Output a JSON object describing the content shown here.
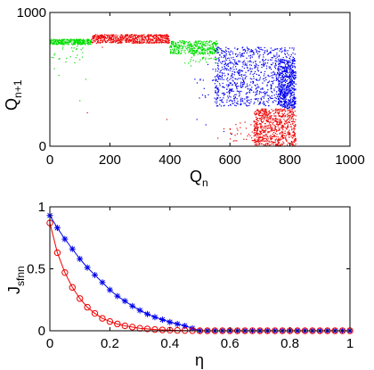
{
  "chart_data": [
    {
      "type": "scatter",
      "xlim": [
        0,
        1000
      ],
      "ylim": [
        0,
        1000
      ],
      "x_ticks": [
        "0",
        "200",
        "400",
        "600",
        "800",
        "1000"
      ],
      "y_ticks": [
        "0",
        "1000"
      ],
      "xlabel": {
        "main": "Q",
        "sub": "n"
      },
      "ylabel": {
        "main": "Q",
        "sub": "n+1"
      },
      "grid": false,
      "series": [
        {
          "color": "#00dd00",
          "clusters": [
            {
              "x": [
                0,
                140
              ],
              "y": [
                760,
                800
              ],
              "n": 320
            },
            {
              "x": [
                400,
                560
              ],
              "y": [
                690,
                790
              ],
              "n": 380
            },
            {
              "x": [
                5,
                110
              ],
              "y": [
                620,
                760
              ],
              "n": 25
            },
            {
              "x": [
                450,
                560
              ],
              "y": [
                620,
                720
              ],
              "n": 40
            }
          ],
          "points": [
            [
              15,
              580
            ],
            [
              30,
              530
            ],
            [
              100,
              340
            ],
            [
              120,
              500
            ],
            [
              470,
              600
            ]
          ]
        },
        {
          "color": "#ee0000",
          "clusters": [
            {
              "x": [
                140,
                400
              ],
              "y": [
                770,
                835
              ],
              "n": 600
            },
            {
              "x": [
                680,
                820
              ],
              "y": [
                0,
                280
              ],
              "n": 700
            },
            {
              "x": [
                600,
                700
              ],
              "y": [
                20,
                180
              ],
              "n": 45
            }
          ],
          "points": [
            [
              125,
              250
            ],
            [
              175,
              740
            ],
            [
              390,
              200
            ],
            [
              560,
              60
            ],
            [
              580,
              130
            ]
          ]
        },
        {
          "color": "#0000ee",
          "clusters": [
            {
              "x": [
                550,
                820
              ],
              "y": [
                300,
                740
              ],
              "n": 950
            },
            {
              "x": [
                760,
                820
              ],
              "y": [
                280,
                650
              ],
              "n": 450
            },
            {
              "x": [
                480,
                620
              ],
              "y": [
                350,
                620
              ],
              "n": 40
            }
          ],
          "points": [
            [
              490,
              200
            ],
            [
              520,
              160
            ],
            [
              560,
              720
            ],
            [
              580,
              110
            ],
            [
              605,
              90
            ]
          ]
        }
      ]
    },
    {
      "type": "line",
      "xlim": [
        0,
        1
      ],
      "ylim": [
        0,
        1
      ],
      "x_ticks": [
        "0",
        "0.2",
        "0.4",
        "0.6",
        "0.8",
        "1"
      ],
      "y_ticks": [
        "0",
        "0.5",
        "1"
      ],
      "xlabel": "η",
      "ylabel": {
        "main": "J",
        "sub": "sfnn"
      },
      "grid": false,
      "x": [
        0.0,
        0.025,
        0.05,
        0.075,
        0.1,
        0.125,
        0.15,
        0.175,
        0.2,
        0.225,
        0.25,
        0.275,
        0.3,
        0.325,
        0.35,
        0.375,
        0.4,
        0.425,
        0.45,
        0.475,
        0.5,
        0.525,
        0.55,
        0.575,
        0.6,
        0.625,
        0.65,
        0.675,
        0.7,
        0.725,
        0.75,
        0.775,
        0.8,
        0.825,
        0.85,
        0.875,
        0.9,
        0.925,
        0.95,
        0.975,
        1.0
      ],
      "series": [
        {
          "color": "#0000ee",
          "marker": "star",
          "values": [
            0.93,
            0.83,
            0.74,
            0.66,
            0.58,
            0.51,
            0.45,
            0.39,
            0.33,
            0.28,
            0.24,
            0.2,
            0.165,
            0.135,
            0.11,
            0.09,
            0.07,
            0.055,
            0.04,
            0.02,
            0.0,
            0.0,
            0.0,
            0.0,
            0.0,
            0.0,
            0.0,
            0.0,
            0.0,
            0.0,
            0.0,
            0.0,
            0.0,
            0.0,
            0.0,
            0.0,
            0.0,
            0.0,
            0.0,
            0.0,
            0.0
          ]
        },
        {
          "color": "#ee0000",
          "marker": "circle",
          "values": [
            0.87,
            0.63,
            0.47,
            0.35,
            0.26,
            0.19,
            0.14,
            0.1,
            0.075,
            0.055,
            0.04,
            0.03,
            0.02,
            0.015,
            0.01,
            0.007,
            0.005,
            0.003,
            0.002,
            0.001,
            0.0,
            0.0,
            0.0,
            0.0,
            0.0,
            0.0,
            0.0,
            0.0,
            0.0,
            0.0,
            0.0,
            0.0,
            0.0,
            0.0,
            0.0,
            0.0,
            0.0,
            0.0,
            0.0,
            0.0,
            0.0
          ]
        }
      ]
    }
  ]
}
